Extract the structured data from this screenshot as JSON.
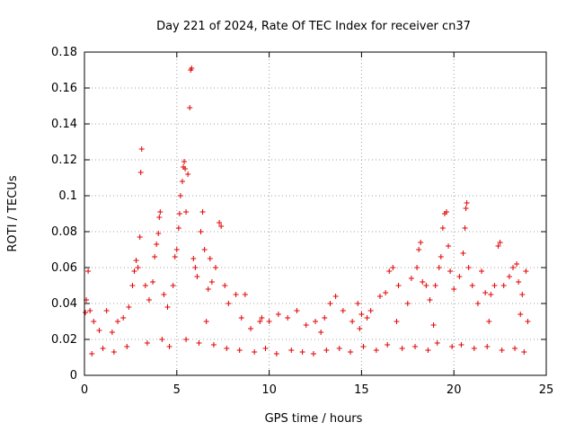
{
  "chart_data": {
    "type": "scatter",
    "title": "Day 221 of 2024, Rate Of TEC Index for receiver cn37",
    "xlabel": "GPS time / hours",
    "ylabel": "ROTI / TECUs",
    "xlim": [
      0,
      25
    ],
    "ylim": [
      0,
      0.18
    ],
    "xticks": [
      "0",
      "5",
      "10",
      "15",
      "20",
      "25"
    ],
    "yticks": [
      "0",
      "0.02",
      "0.04",
      "0.06",
      "0.08",
      "0.1",
      "0.12",
      "0.14",
      "0.16",
      "0.18"
    ],
    "grid": true,
    "marker": "+",
    "color": "#e00000",
    "series": [
      {
        "points": [
          [
            0.1,
            0.042
          ],
          [
            0.2,
            0.058
          ],
          [
            0.3,
            0.036
          ],
          [
            0.5,
            0.03
          ],
          [
            0.8,
            0.025
          ],
          [
            1.2,
            0.036
          ],
          [
            1.5,
            0.024
          ],
          [
            1.8,
            0.03
          ],
          [
            2.1,
            0.032
          ],
          [
            2.4,
            0.038
          ],
          [
            2.6,
            0.05
          ],
          [
            2.7,
            0.058
          ],
          [
            2.8,
            0.064
          ],
          [
            2.9,
            0.06
          ],
          [
            3.0,
            0.077
          ],
          [
            3.05,
            0.113
          ],
          [
            3.1,
            0.126
          ],
          [
            3.3,
            0.05
          ],
          [
            3.5,
            0.042
          ],
          [
            3.7,
            0.052
          ],
          [
            3.8,
            0.066
          ],
          [
            3.9,
            0.073
          ],
          [
            4.0,
            0.079
          ],
          [
            4.05,
            0.088
          ],
          [
            4.1,
            0.091
          ],
          [
            4.3,
            0.045
          ],
          [
            4.5,
            0.038
          ],
          [
            4.8,
            0.05
          ],
          [
            4.9,
            0.066
          ],
          [
            5.0,
            0.07
          ],
          [
            5.1,
            0.082
          ],
          [
            5.15,
            0.09
          ],
          [
            5.2,
            0.1
          ],
          [
            5.3,
            0.108
          ],
          [
            5.35,
            0.116
          ],
          [
            5.4,
            0.119
          ],
          [
            5.45,
            0.115
          ],
          [
            5.5,
            0.091
          ],
          [
            5.6,
            0.112
          ],
          [
            5.7,
            0.149
          ],
          [
            5.75,
            0.17
          ],
          [
            5.8,
            0.171
          ],
          [
            5.9,
            0.065
          ],
          [
            6.0,
            0.06
          ],
          [
            6.1,
            0.055
          ],
          [
            6.3,
            0.08
          ],
          [
            6.4,
            0.091
          ],
          [
            6.5,
            0.07
          ],
          [
            6.7,
            0.048
          ],
          [
            6.8,
            0.065
          ],
          [
            6.9,
            0.052
          ],
          [
            7.1,
            0.06
          ],
          [
            7.3,
            0.085
          ],
          [
            7.4,
            0.083
          ],
          [
            7.6,
            0.05
          ],
          [
            7.8,
            0.04
          ],
          [
            8.2,
            0.045
          ],
          [
            8.5,
            0.032
          ],
          [
            8.7,
            0.045
          ],
          [
            9.0,
            0.026
          ],
          [
            9.5,
            0.03
          ],
          [
            10.0,
            0.03
          ],
          [
            10.5,
            0.034
          ],
          [
            11.0,
            0.032
          ],
          [
            11.5,
            0.036
          ],
          [
            12.0,
            0.028
          ],
          [
            12.5,
            0.03
          ],
          [
            13.0,
            0.032
          ],
          [
            13.3,
            0.04
          ],
          [
            13.6,
            0.044
          ],
          [
            14.0,
            0.036
          ],
          [
            14.5,
            0.03
          ],
          [
            14.8,
            0.04
          ],
          [
            15.0,
            0.034
          ],
          [
            15.3,
            0.032
          ],
          [
            15.5,
            0.036
          ],
          [
            16.0,
            0.044
          ],
          [
            16.3,
            0.046
          ],
          [
            16.5,
            0.058
          ],
          [
            16.7,
            0.06
          ],
          [
            17.0,
            0.05
          ],
          [
            17.5,
            0.04
          ],
          [
            17.7,
            0.054
          ],
          [
            18.0,
            0.06
          ],
          [
            18.1,
            0.07
          ],
          [
            18.2,
            0.074
          ],
          [
            18.3,
            0.052
          ],
          [
            18.5,
            0.05
          ],
          [
            18.7,
            0.042
          ],
          [
            19.0,
            0.05
          ],
          [
            19.2,
            0.06
          ],
          [
            19.3,
            0.066
          ],
          [
            19.4,
            0.082
          ],
          [
            19.5,
            0.09
          ],
          [
            19.6,
            0.091
          ],
          [
            19.7,
            0.072
          ],
          [
            19.8,
            0.058
          ],
          [
            20.0,
            0.048
          ],
          [
            20.3,
            0.055
          ],
          [
            20.5,
            0.068
          ],
          [
            20.6,
            0.082
          ],
          [
            20.65,
            0.093
          ],
          [
            20.7,
            0.096
          ],
          [
            20.8,
            0.06
          ],
          [
            21.0,
            0.05
          ],
          [
            21.3,
            0.04
          ],
          [
            21.5,
            0.058
          ],
          [
            21.7,
            0.046
          ],
          [
            22.0,
            0.045
          ],
          [
            22.2,
            0.05
          ],
          [
            22.4,
            0.072
          ],
          [
            22.5,
            0.074
          ],
          [
            22.7,
            0.05
          ],
          [
            23.0,
            0.055
          ],
          [
            23.2,
            0.06
          ],
          [
            23.4,
            0.062
          ],
          [
            23.5,
            0.052
          ],
          [
            23.7,
            0.045
          ],
          [
            23.9,
            0.058
          ],
          [
            24.0,
            0.03
          ],
          [
            0.4,
            0.012
          ],
          [
            1.0,
            0.015
          ],
          [
            1.6,
            0.013
          ],
          [
            2.3,
            0.016
          ],
          [
            3.4,
            0.018
          ],
          [
            4.2,
            0.02
          ],
          [
            4.6,
            0.016
          ],
          [
            5.5,
            0.02
          ],
          [
            6.2,
            0.018
          ],
          [
            7.0,
            0.017
          ],
          [
            7.7,
            0.015
          ],
          [
            8.4,
            0.014
          ],
          [
            9.2,
            0.013
          ],
          [
            9.8,
            0.015
          ],
          [
            10.4,
            0.012
          ],
          [
            11.2,
            0.014
          ],
          [
            11.8,
            0.013
          ],
          [
            12.4,
            0.012
          ],
          [
            13.1,
            0.014
          ],
          [
            13.8,
            0.015
          ],
          [
            14.4,
            0.013
          ],
          [
            15.1,
            0.016
          ],
          [
            15.8,
            0.014
          ],
          [
            16.4,
            0.017
          ],
          [
            17.2,
            0.015
          ],
          [
            17.9,
            0.016
          ],
          [
            18.6,
            0.014
          ],
          [
            19.1,
            0.018
          ],
          [
            19.9,
            0.016
          ],
          [
            20.4,
            0.017
          ],
          [
            21.1,
            0.015
          ],
          [
            21.8,
            0.016
          ],
          [
            22.6,
            0.014
          ],
          [
            23.3,
            0.015
          ],
          [
            23.8,
            0.013
          ],
          [
            0.05,
            0.035
          ],
          [
            6.6,
            0.03
          ],
          [
            9.6,
            0.032
          ],
          [
            12.8,
            0.024
          ],
          [
            14.9,
            0.026
          ],
          [
            16.9,
            0.03
          ],
          [
            18.9,
            0.028
          ],
          [
            21.9,
            0.03
          ],
          [
            23.6,
            0.034
          ]
        ]
      }
    ]
  }
}
